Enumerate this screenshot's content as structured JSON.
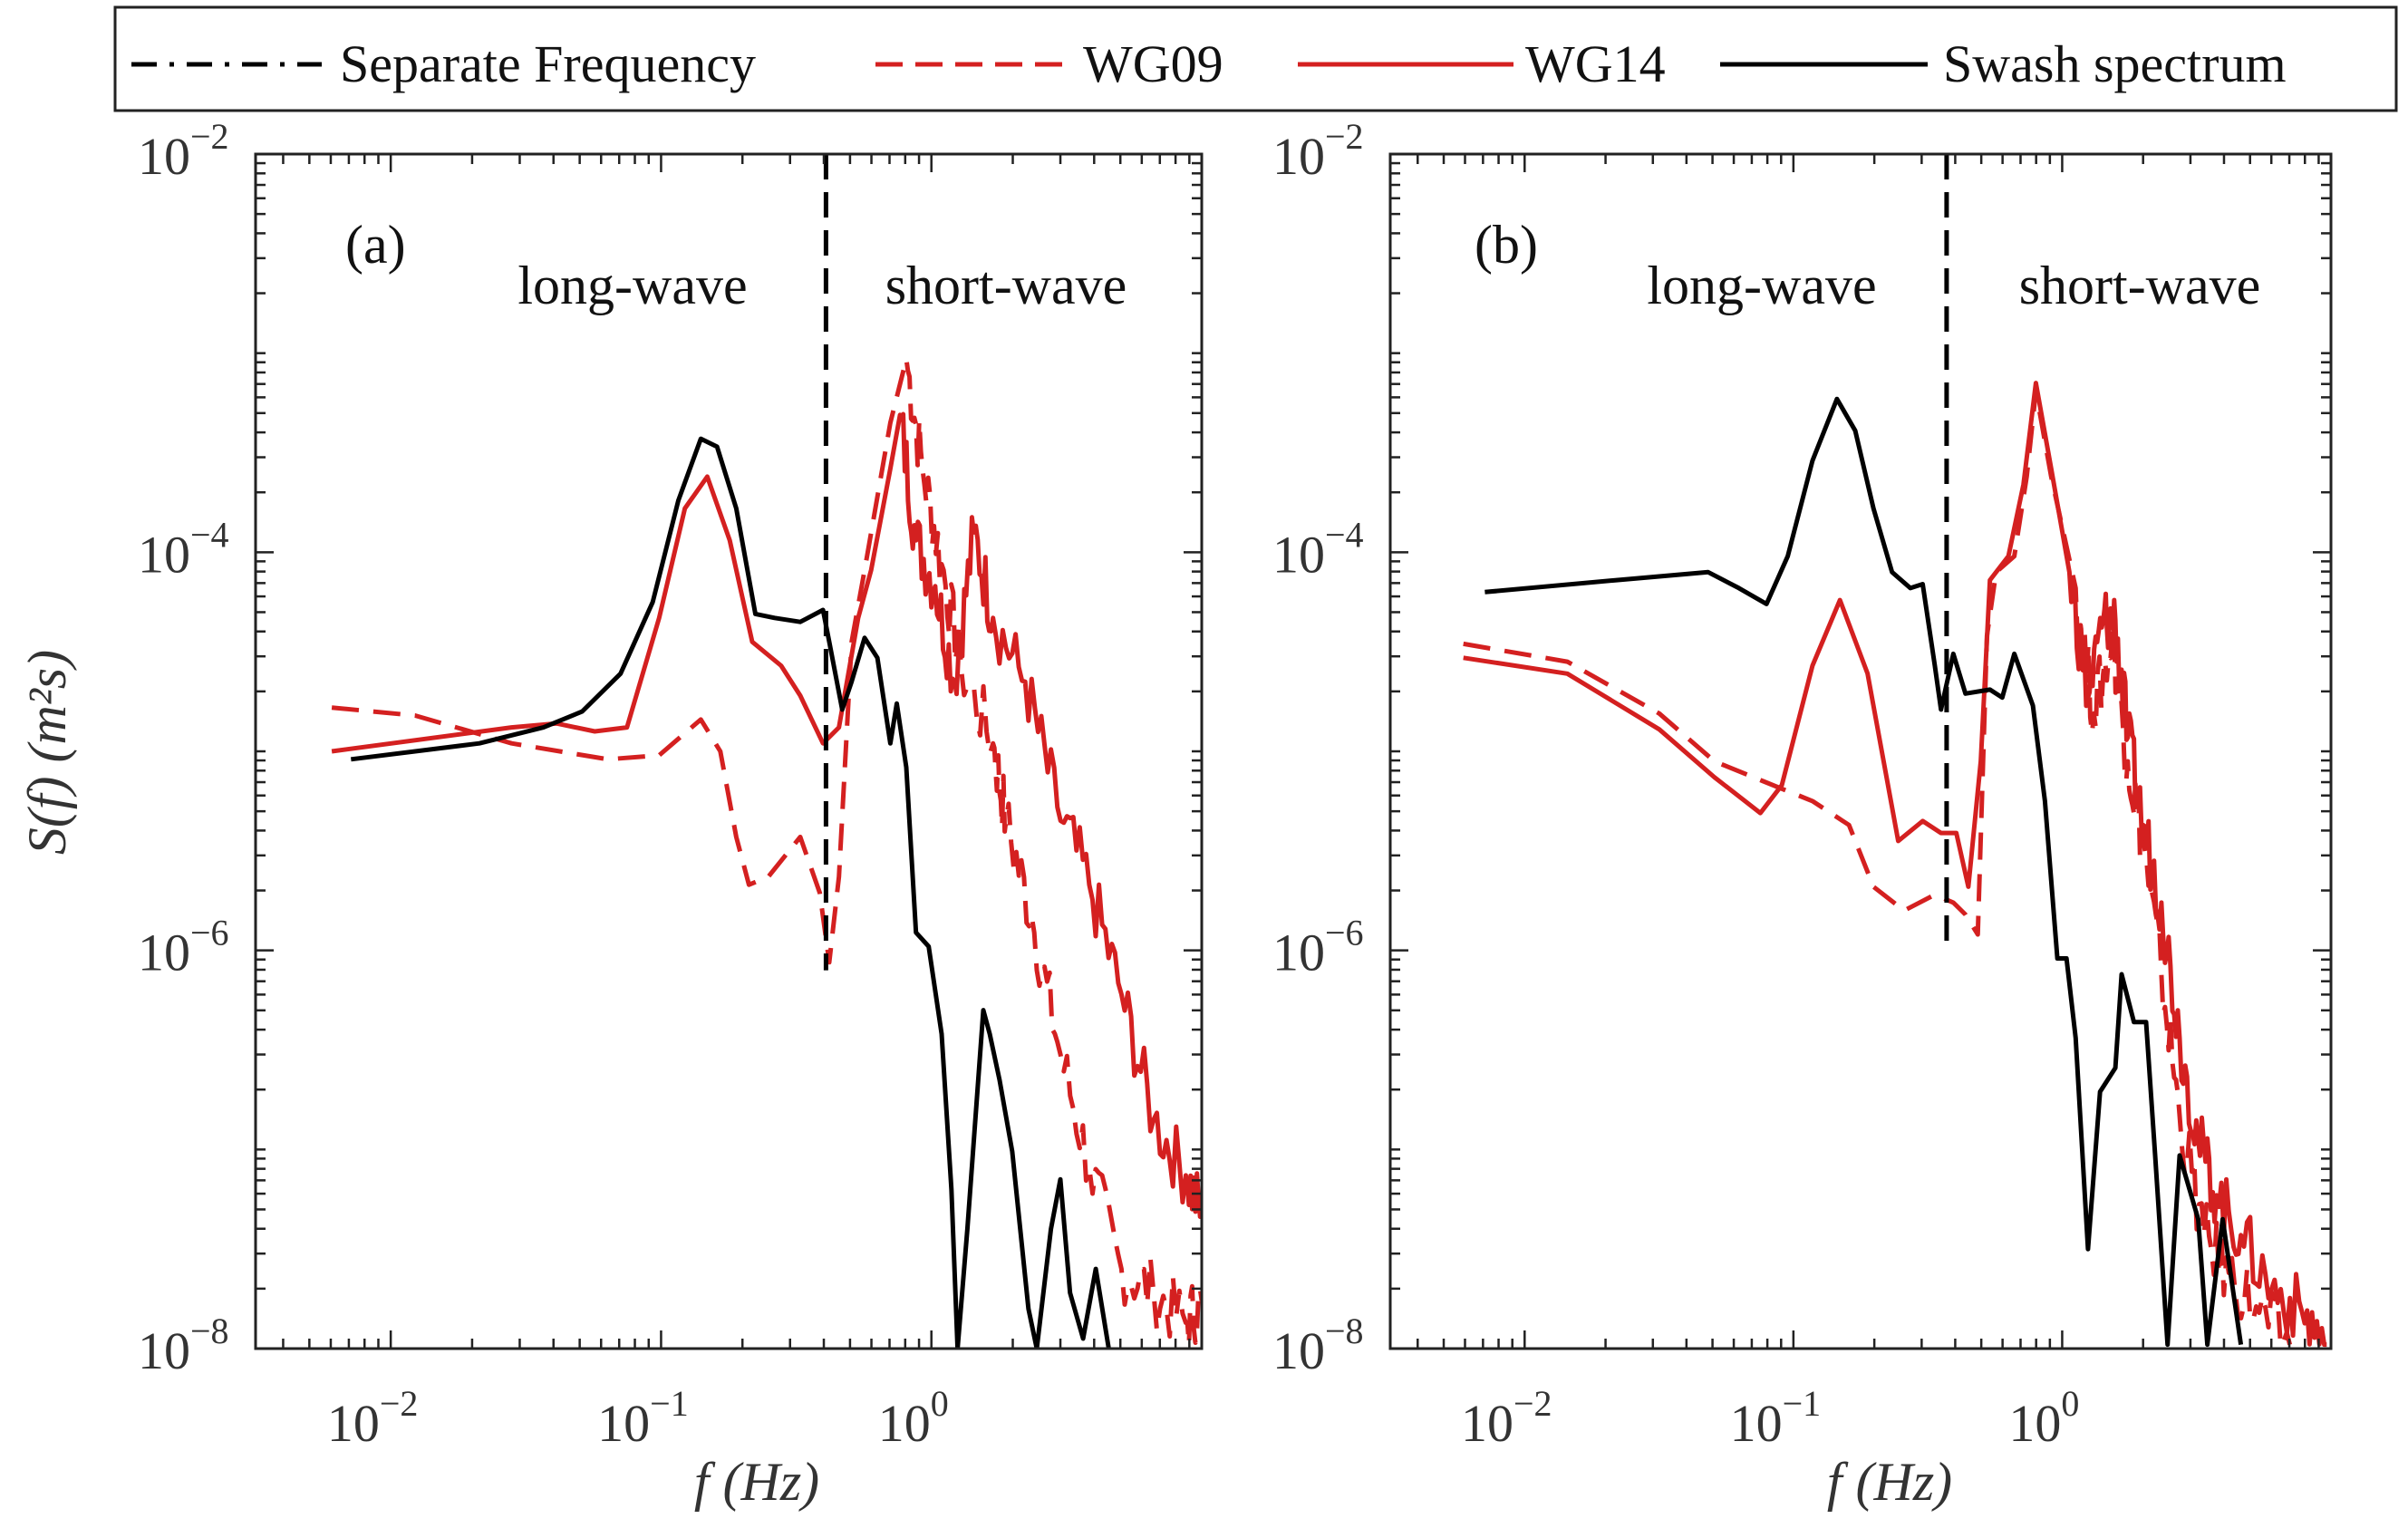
{
  "legend": {
    "entries": [
      {
        "label": "Separate Frequency",
        "color": "#000000",
        "style": "dashdot"
      },
      {
        "label": "WG09",
        "color": "#d42020",
        "style": "dashed"
      },
      {
        "label": "WG14",
        "color": "#d42020",
        "style": "solid"
      },
      {
        "label": "Swash spectrum",
        "color": "#000000",
        "style": "solid"
      }
    ]
  },
  "chart_data": [
    {
      "type": "line",
      "panel_label": "(a)",
      "region_labels": [
        "long-wave",
        "short-wave"
      ],
      "xlabel": "f (Hz)",
      "ylabel": "S(f) (m²s)",
      "x_scale": "log",
      "y_scale": "log",
      "xlim_log10": [
        -2.5,
        1.0
      ],
      "ylim_log10": [
        -8,
        -2
      ],
      "x_tick_labels": [
        {
          "base": "10",
          "exp": "−2",
          "at": -2
        },
        {
          "base": "10",
          "exp": "−1",
          "at": -1
        },
        {
          "base": "10",
          "exp": "0",
          "at": 0
        }
      ],
      "y_tick_labels": [
        {
          "base": "10",
          "exp": "−2",
          "at": -2
        },
        {
          "base": "10",
          "exp": "−4",
          "at": -4
        },
        {
          "base": "10",
          "exp": "−6",
          "at": -6
        },
        {
          "base": "10",
          "exp": "−8",
          "at": -8
        }
      ],
      "separate_frequency_log10": -0.39,
      "separate_line_ylim_log10": [
        -6.1,
        -2
      ],
      "point_format": "[log10 f (Hz), log10 S (m^2 s)]",
      "series": [
        {
          "name": "WG09",
          "color": "#d42020",
          "style": "dashed",
          "noise_above_log10f": -0.15,
          "points": [
            [
              -2.218,
              -4.78
            ],
            [
              -1.91,
              -4.82
            ],
            [
              -1.553,
              -4.96
            ],
            [
              -1.197,
              -5.04
            ],
            [
              -1.007,
              -5.02
            ],
            [
              -0.853,
              -4.84
            ],
            [
              -0.781,
              -5.0
            ],
            [
              -0.722,
              -5.43
            ],
            [
              -0.675,
              -5.67
            ],
            [
              -0.603,
              -5.63
            ],
            [
              -0.485,
              -5.43
            ],
            [
              -0.413,
              -5.71
            ],
            [
              -0.378,
              -6.06
            ],
            [
              -0.342,
              -5.63
            ],
            [
              -0.295,
              -4.45
            ],
            [
              -0.247,
              -4.09
            ],
            [
              -0.152,
              -3.35
            ],
            [
              -0.093,
              -3.03
            ],
            [
              -0.033,
              -3.58
            ],
            [
              0.038,
              -4.06
            ],
            [
              0.109,
              -4.57
            ],
            [
              0.228,
              -4.96
            ],
            [
              0.276,
              -5.35
            ],
            [
              0.371,
              -5.83
            ],
            [
              0.466,
              -6.46
            ],
            [
              0.584,
              -7.09
            ],
            [
              0.703,
              -7.6
            ],
            [
              0.822,
              -7.72
            ],
            [
              0.941,
              -7.87
            ],
            [
              1.0,
              -7.76
            ]
          ]
        },
        {
          "name": "WG14",
          "color": "#d42020",
          "style": "solid",
          "noise_above_log10f": -0.15,
          "points": [
            [
              -2.218,
              -5.0
            ],
            [
              -1.553,
              -4.88
            ],
            [
              -1.387,
              -4.86
            ],
            [
              -1.245,
              -4.9
            ],
            [
              -1.126,
              -4.88
            ],
            [
              -1.007,
              -4.33
            ],
            [
              -0.912,
              -3.78
            ],
            [
              -0.829,
              -3.62
            ],
            [
              -0.746,
              -3.94
            ],
            [
              -0.663,
              -4.45
            ],
            [
              -0.556,
              -4.57
            ],
            [
              -0.485,
              -4.72
            ],
            [
              -0.401,
              -4.96
            ],
            [
              -0.342,
              -4.88
            ],
            [
              -0.271,
              -4.33
            ],
            [
              -0.223,
              -4.09
            ],
            [
              -0.152,
              -3.58
            ],
            [
              -0.116,
              -3.31
            ],
            [
              -0.057,
              -3.94
            ],
            [
              0.014,
              -4.17
            ],
            [
              0.086,
              -4.65
            ],
            [
              0.157,
              -3.9
            ],
            [
              0.228,
              -4.33
            ],
            [
              0.347,
              -4.65
            ],
            [
              0.466,
              -5.28
            ],
            [
              0.584,
              -5.67
            ],
            [
              0.703,
              -6.22
            ],
            [
              0.822,
              -6.85
            ],
            [
              0.941,
              -7.13
            ],
            [
              1.0,
              -7.32
            ]
          ]
        },
        {
          "name": "Swash spectrum",
          "color": "#000000",
          "style": "solid",
          "noise_above_log10f": 9,
          "points": [
            [
              -2.147,
              -5.04
            ],
            [
              -1.672,
              -4.96
            ],
            [
              -1.435,
              -4.88
            ],
            [
              -1.292,
              -4.8
            ],
            [
              -1.15,
              -4.61
            ],
            [
              -1.031,
              -4.25
            ],
            [
              -0.936,
              -3.74
            ],
            [
              -0.853,
              -3.43
            ],
            [
              -0.793,
              -3.47
            ],
            [
              -0.722,
              -3.78
            ],
            [
              -0.651,
              -4.31
            ],
            [
              -0.58,
              -4.33
            ],
            [
              -0.485,
              -4.35
            ],
            [
              -0.401,
              -4.29
            ],
            [
              -0.378,
              -4.45
            ],
            [
              -0.33,
              -4.79
            ],
            [
              -0.295,
              -4.65
            ],
            [
              -0.247,
              -4.43
            ],
            [
              -0.2,
              -4.53
            ],
            [
              -0.152,
              -4.96
            ],
            [
              -0.128,
              -4.76
            ],
            [
              -0.093,
              -5.08
            ],
            [
              -0.057,
              -5.91
            ],
            [
              -0.01,
              -5.98
            ],
            [
              0.038,
              -6.42
            ],
            [
              0.074,
              -7.2
            ],
            [
              0.097,
              -8.0
            ],
            [
              0.133,
              -7.4
            ],
            [
              0.192,
              -6.3
            ],
            [
              0.216,
              -6.42
            ],
            [
              0.252,
              -6.65
            ],
            [
              0.299,
              -7.01
            ],
            [
              0.359,
              -7.8
            ],
            [
              0.39,
              -8.0
            ],
            [
              0.442,
              -7.4
            ],
            [
              0.477,
              -7.15
            ],
            [
              0.513,
              -7.72
            ],
            [
              0.561,
              -7.95
            ],
            [
              0.608,
              -7.6
            ],
            [
              0.656,
              -8.0
            ]
          ]
        }
      ]
    },
    {
      "type": "line",
      "panel_label": "(b)",
      "region_labels": [
        "long-wave",
        "short-wave"
      ],
      "xlabel": "f (Hz)",
      "x_scale": "log",
      "y_scale": "log",
      "xlim_log10": [
        -2.5,
        1.0
      ],
      "ylim_log10": [
        -8,
        -2
      ],
      "x_tick_labels": [
        {
          "base": "10",
          "exp": "−2",
          "at": -2
        },
        {
          "base": "10",
          "exp": "−1",
          "at": -1
        },
        {
          "base": "10",
          "exp": "0",
          "at": 0
        }
      ],
      "y_tick_labels": [
        {
          "base": "10",
          "exp": "−2",
          "at": -2
        },
        {
          "base": "10",
          "exp": "−4",
          "at": -4
        },
        {
          "base": "10",
          "exp": "−6",
          "at": -6
        },
        {
          "base": "10",
          "exp": "−8",
          "at": -8
        }
      ],
      "separate_frequency_log10": -0.43,
      "separate_line_ylim_log10": [
        -6.0,
        -2
      ],
      "point_format": "[log10 f (Hz), log10 S (m^2 s)]",
      "series": [
        {
          "name": "WG09",
          "color": "#d42020",
          "style": "dashed",
          "noise_above_log10f": 0.0,
          "points": [
            [
              -2.228,
              -4.46
            ],
            [
              -1.841,
              -4.55
            ],
            [
              -1.499,
              -4.81
            ],
            [
              -1.294,
              -5.05
            ],
            [
              -1.112,
              -5.15
            ],
            [
              -0.929,
              -5.25
            ],
            [
              -0.793,
              -5.37
            ],
            [
              -0.702,
              -5.68
            ],
            [
              -0.588,
              -5.8
            ],
            [
              -0.474,
              -5.72
            ],
            [
              -0.405,
              -5.76
            ],
            [
              -0.36,
              -5.82
            ],
            [
              -0.314,
              -5.92
            ],
            [
              -0.28,
              -4.42
            ],
            [
              -0.246,
              -4.1
            ],
            [
              -0.178,
              -4.02
            ],
            [
              -0.132,
              -3.62
            ],
            [
              -0.098,
              -3.19
            ],
            [
              -0.041,
              -3.62
            ],
            [
              0.05,
              -4.18
            ],
            [
              0.118,
              -4.81
            ],
            [
              0.187,
              -4.42
            ],
            [
              0.244,
              -5.05
            ],
            [
              0.301,
              -5.45
            ],
            [
              0.369,
              -6.12
            ],
            [
              0.437,
              -6.83
            ],
            [
              0.528,
              -7.43
            ],
            [
              0.62,
              -7.62
            ],
            [
              0.733,
              -7.82
            ],
            [
              0.847,
              -7.98
            ]
          ]
        },
        {
          "name": "WG14",
          "color": "#d42020",
          "style": "solid",
          "noise_above_log10f": 0.0,
          "points": [
            [
              -2.228,
              -4.53
            ],
            [
              -1.841,
              -4.61
            ],
            [
              -1.499,
              -4.89
            ],
            [
              -1.294,
              -5.13
            ],
            [
              -1.123,
              -5.31
            ],
            [
              -1.043,
              -5.17
            ],
            [
              -0.929,
              -4.57
            ],
            [
              -0.827,
              -4.24
            ],
            [
              -0.724,
              -4.61
            ],
            [
              -0.61,
              -5.45
            ],
            [
              -0.519,
              -5.35
            ],
            [
              -0.451,
              -5.41
            ],
            [
              -0.394,
              -5.41
            ],
            [
              -0.349,
              -5.68
            ],
            [
              -0.303,
              -5.05
            ],
            [
              -0.269,
              -4.14
            ],
            [
              -0.2,
              -4.02
            ],
            [
              -0.144,
              -3.66
            ],
            [
              -0.098,
              -3.15
            ],
            [
              -0.041,
              -3.58
            ],
            [
              0.027,
              -4.1
            ],
            [
              0.096,
              -4.73
            ],
            [
              0.153,
              -4.34
            ],
            [
              0.198,
              -4.34
            ],
            [
              0.244,
              -4.93
            ],
            [
              0.301,
              -5.37
            ],
            [
              0.369,
              -5.76
            ],
            [
              0.437,
              -6.44
            ],
            [
              0.506,
              -6.95
            ],
            [
              0.574,
              -7.23
            ],
            [
              0.665,
              -7.43
            ],
            [
              0.779,
              -7.7
            ],
            [
              0.893,
              -7.82
            ],
            [
              0.984,
              -7.98
            ]
          ]
        },
        {
          "name": "Swash spectrum",
          "color": "#000000",
          "style": "solid",
          "noise_above_log10f": 9,
          "points": [
            [
              -2.148,
              -4.2
            ],
            [
              -1.658,
              -4.14
            ],
            [
              -1.317,
              -4.1
            ],
            [
              -1.203,
              -4.18
            ],
            [
              -1.1,
              -4.26
            ],
            [
              -1.021,
              -4.02
            ],
            [
              -0.929,
              -3.54
            ],
            [
              -0.838,
              -3.23
            ],
            [
              -0.77,
              -3.39
            ],
            [
              -0.702,
              -3.78
            ],
            [
              -0.633,
              -4.1
            ],
            [
              -0.565,
              -4.18
            ],
            [
              -0.519,
              -4.16
            ],
            [
              -0.474,
              -4.57
            ],
            [
              -0.451,
              -4.79
            ],
            [
              -0.405,
              -4.51
            ],
            [
              -0.36,
              -4.71
            ],
            [
              -0.269,
              -4.69
            ],
            [
              -0.223,
              -4.73
            ],
            [
              -0.178,
              -4.51
            ],
            [
              -0.109,
              -4.77
            ],
            [
              -0.064,
              -5.25
            ],
            [
              -0.018,
              -6.04
            ],
            [
              0.016,
              -6.04
            ],
            [
              0.05,
              -6.44
            ],
            [
              0.096,
              -7.5
            ],
            [
              0.141,
              -6.71
            ],
            [
              0.198,
              -6.59
            ],
            [
              0.221,
              -6.12
            ],
            [
              0.267,
              -6.36
            ],
            [
              0.312,
              -6.36
            ],
            [
              0.346,
              -7.03
            ],
            [
              0.392,
              -7.98
            ],
            [
              0.437,
              -7.03
            ],
            [
              0.506,
              -7.35
            ],
            [
              0.54,
              -7.98
            ],
            [
              0.597,
              -7.35
            ],
            [
              0.665,
              -7.98
            ]
          ]
        }
      ]
    }
  ]
}
